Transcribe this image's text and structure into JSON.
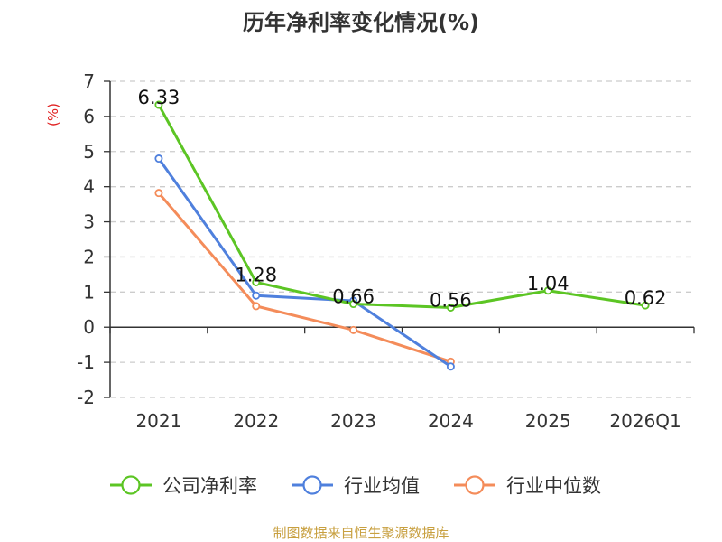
{
  "chart_data": {
    "type": "line",
    "title": "历年净利率变化情况(%)",
    "ylabel": "(%)",
    "xlabel": "",
    "categories": [
      "2021",
      "2022",
      "2023",
      "2024",
      "2025",
      "2026Q1"
    ],
    "ylim": [
      -2,
      7
    ],
    "yticks": [
      -2,
      -1,
      0,
      1,
      2,
      3,
      4,
      5,
      6,
      7
    ],
    "grid": "horizontal-dashed",
    "legend_position": "bottom",
    "series": [
      {
        "name": "公司净利率",
        "color": "#5cc524",
        "values": [
          6.33,
          1.28,
          0.66,
          0.56,
          1.04,
          0.62
        ],
        "labels": [
          "6.33",
          "1.28",
          "0.66",
          "0.56",
          "1.04",
          "0.62"
        ]
      },
      {
        "name": "行业均值",
        "color": "#4f80dd",
        "values": [
          4.8,
          0.9,
          0.75,
          -1.12,
          null,
          null
        ]
      },
      {
        "name": "行业中位数",
        "color": "#f48c5a",
        "values": [
          3.82,
          0.6,
          -0.08,
          -0.98,
          null,
          null
        ]
      }
    ]
  },
  "source_text": "制图数据来自恒生聚源数据库",
  "colors": {
    "ylabel": "#e02020",
    "source": "#c8a040",
    "axis": "#333333",
    "grid": "#cccccc"
  }
}
